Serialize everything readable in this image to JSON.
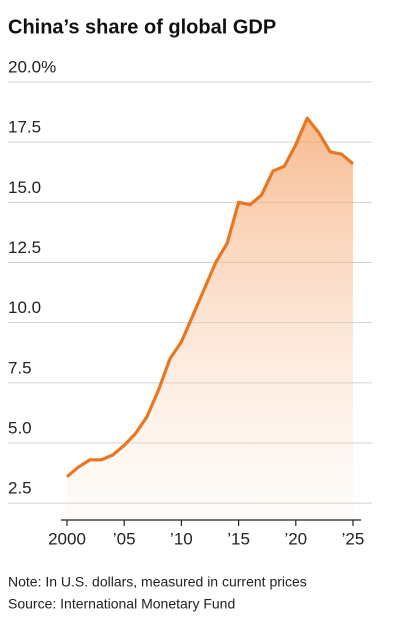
{
  "chart_data": {
    "type": "line",
    "title": "China’s share of global GDP",
    "notes": [
      "Note: In U.S. dollars, measured in current prices",
      "Source: International Monetary Fund"
    ],
    "x": [
      2000,
      2001,
      2002,
      2003,
      2004,
      2005,
      2006,
      2007,
      2008,
      2009,
      2010,
      2011,
      2012,
      2013,
      2014,
      2015,
      2016,
      2017,
      2018,
      2019,
      2020,
      2021,
      2022,
      2023,
      2024,
      2025
    ],
    "values": [
      3.6,
      4.0,
      4.3,
      4.3,
      4.5,
      4.9,
      5.4,
      6.1,
      7.2,
      8.5,
      9.2,
      10.3,
      11.4,
      12.5,
      13.3,
      15.0,
      14.9,
      15.3,
      16.3,
      16.5,
      17.4,
      18.5,
      17.9,
      17.1,
      17.0,
      16.6
    ],
    "color": "#e87722",
    "area": true,
    "xlim": [
      2000,
      2025
    ],
    "xticks": [
      2000,
      {
        "value": 2005,
        "label": "’05"
      },
      {
        "value": 2010,
        "label": "’10"
      },
      {
        "value": 2015,
        "label": "’15"
      },
      {
        "value": 2020,
        "label": "’20"
      },
      {
        "value": 2025,
        "label": "’25"
      }
    ],
    "ylim": [
      1.8,
      20
    ],
    "yticks": [
      2.5,
      {
        "value": 5,
        "label": "5.0"
      },
      7.5,
      {
        "value": 10,
        "label": "10.0"
      },
      12.5,
      {
        "value": 15,
        "label": "15.0"
      },
      17.5,
      {
        "value": 20,
        "label": "20.0%"
      }
    ],
    "grid": true
  }
}
